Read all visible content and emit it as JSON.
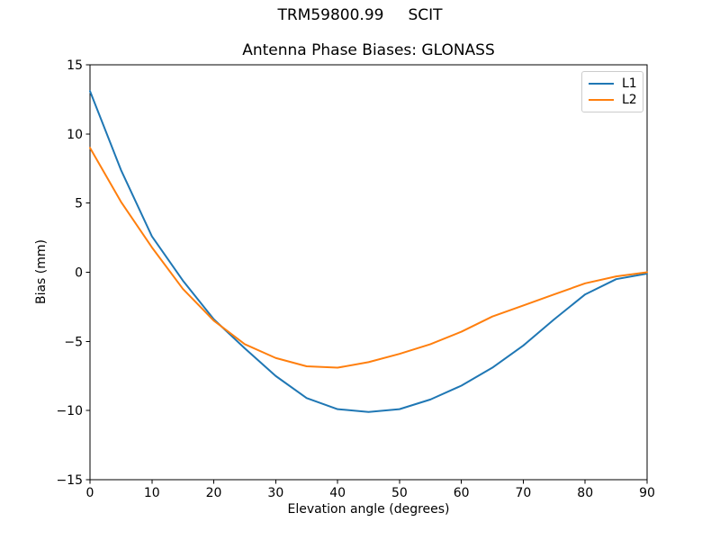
{
  "chart_data": {
    "type": "line",
    "suptitle": "TRM59800.99     SCIT",
    "title": "Antenna Phase Biases: GLONASS",
    "xlabel": "Elevation angle (degrees)",
    "ylabel": "Bias (mm)",
    "xlim": [
      0,
      90
    ],
    "ylim": [
      -15,
      15
    ],
    "grid": false,
    "legend_position": "upper right",
    "xticks": {
      "values": [
        0,
        10,
        20,
        30,
        40,
        50,
        60,
        70,
        80,
        90
      ],
      "labels": [
        "0",
        "10",
        "20",
        "30",
        "40",
        "50",
        "60",
        "70",
        "80",
        "90"
      ]
    },
    "yticks": {
      "values": [
        -15,
        -10,
        -5,
        0,
        5,
        10,
        15
      ],
      "labels": [
        "−15",
        "−10",
        "−5",
        "0",
        "5",
        "10",
        "15"
      ]
    },
    "x": [
      0,
      5,
      10,
      15,
      20,
      25,
      30,
      35,
      40,
      45,
      50,
      55,
      60,
      65,
      70,
      75,
      80,
      85,
      90
    ],
    "series": [
      {
        "name": "L1",
        "color": "#1f77b4",
        "values": [
          13.1,
          7.4,
          2.6,
          -0.6,
          -3.4,
          -5.5,
          -7.5,
          -9.1,
          -9.9,
          -10.1,
          -9.9,
          -9.2,
          -8.2,
          -6.9,
          -5.3,
          -3.4,
          -1.6,
          -0.5,
          -0.1
        ]
      },
      {
        "name": "L2",
        "color": "#ff7f0e",
        "values": [
          9.0,
          5.1,
          1.8,
          -1.2,
          -3.5,
          -5.2,
          -6.2,
          -6.8,
          -6.9,
          -6.5,
          -5.9,
          -5.2,
          -4.3,
          -3.2,
          -2.4,
          -1.6,
          -0.8,
          -0.3,
          0.0
        ]
      }
    ]
  }
}
